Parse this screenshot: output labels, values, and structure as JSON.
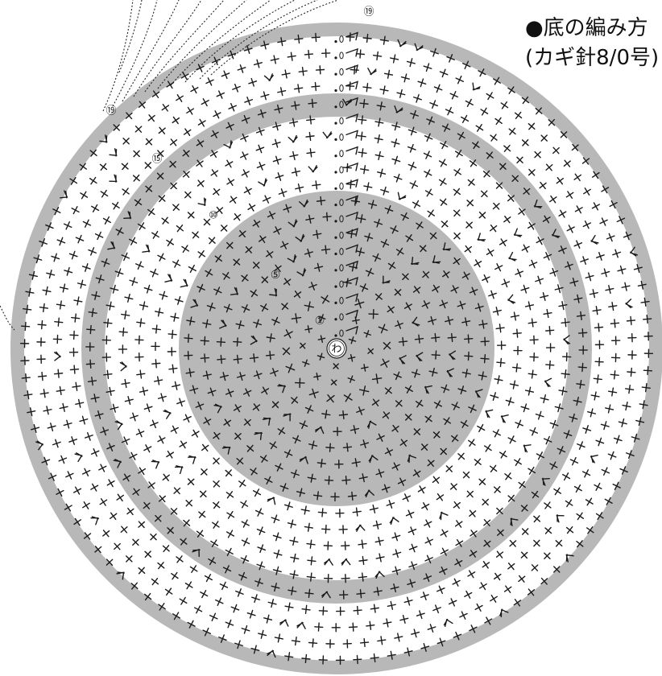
{
  "title": "●底の編み方",
  "subtitle": "(カギ針8/0号)",
  "center_label": "わ",
  "round_markers": [
    {
      "round": 1,
      "label": "①"
    },
    {
      "round": 5,
      "label": "⑤"
    },
    {
      "round": 10,
      "label": "⑩"
    },
    {
      "round": 15,
      "label": "⑮"
    },
    {
      "round": 19,
      "label": "⑲"
    },
    {
      "round": 19,
      "label": "⑲"
    }
  ],
  "colors": {
    "band": "#b8b8b8",
    "background": "#ffffff",
    "stitch": "#1a1a1a"
  },
  "stitch_types": [
    "single-crochet",
    "increase",
    "slip-stitch",
    "chain"
  ]
}
